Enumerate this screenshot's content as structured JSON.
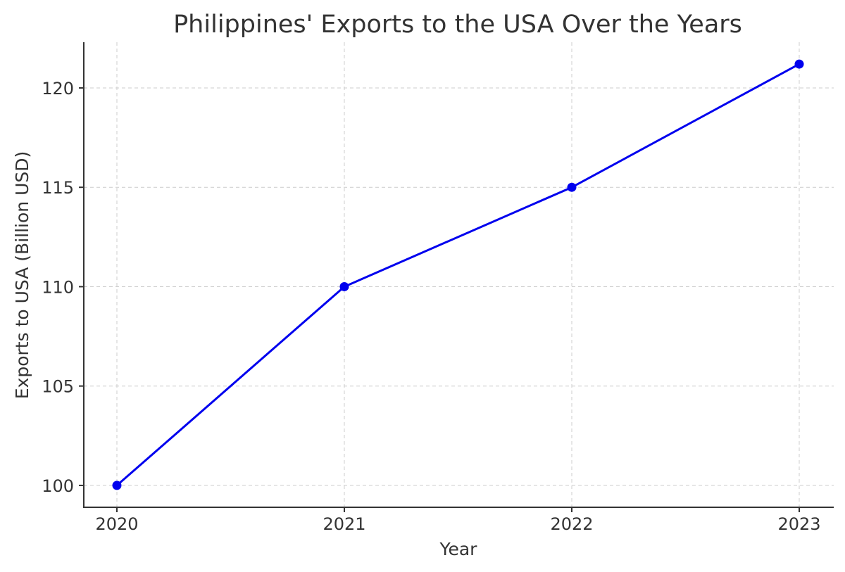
{
  "chart_data": {
    "type": "line",
    "title": "Philippines' Exports to the USA Over the Years",
    "xlabel": "Year",
    "ylabel": "Exports to USA (Billion USD)",
    "x": [
      "2020",
      "2021",
      "2022",
      "2023"
    ],
    "series": [
      {
        "values": [
          100,
          110,
          115,
          121.2
        ],
        "color": "#0000ee",
        "marker": "circle"
      }
    ],
    "yticks": [
      100,
      105,
      110,
      115,
      120
    ],
    "ylim": [
      98.9,
      122.3
    ],
    "grid": true,
    "grid_style": "dashed"
  }
}
